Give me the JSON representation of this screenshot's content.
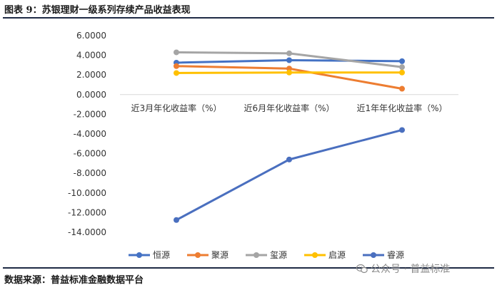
{
  "title": "图表 9：苏银理财一级系列存续产品收益表现",
  "source": "数据来源：普益标准金融数据平台",
  "watermark": "公众号 · 普益标准",
  "chart_data": {
    "type": "line",
    "title": "",
    "categories": [
      "近3月年化收益率（%）",
      "近6月年化收益率（%）",
      "近1年年化收益率（%）"
    ],
    "ylim": [
      -14,
      6
    ],
    "ytick_step": 2,
    "ytick_labels": [
      "6.0000",
      "4.0000",
      "2.0000",
      "0.0000",
      "-2.0000",
      "-4.0000",
      "-6.0000",
      "-8.0000",
      "-10.0000",
      "-12.0000",
      "-14.0000"
    ],
    "legend_position": "bottom",
    "grid": false,
    "series": [
      {
        "name": "恒源",
        "color": "#4472c4",
        "values": [
          3.25,
          3.5,
          3.4
        ]
      },
      {
        "name": "聚源",
        "color": "#ed7d31",
        "values": [
          2.9,
          2.65,
          0.6
        ]
      },
      {
        "name": "玺源",
        "color": "#a5a5a5",
        "values": [
          4.3,
          4.2,
          2.8
        ]
      },
      {
        "name": "启源",
        "color": "#ffc000",
        "values": [
          2.2,
          2.25,
          2.25
        ]
      },
      {
        "name": "睿源",
        "color": "#4a6fbf",
        "values": [
          -12.75,
          -6.6,
          -3.6
        ]
      }
    ]
  }
}
